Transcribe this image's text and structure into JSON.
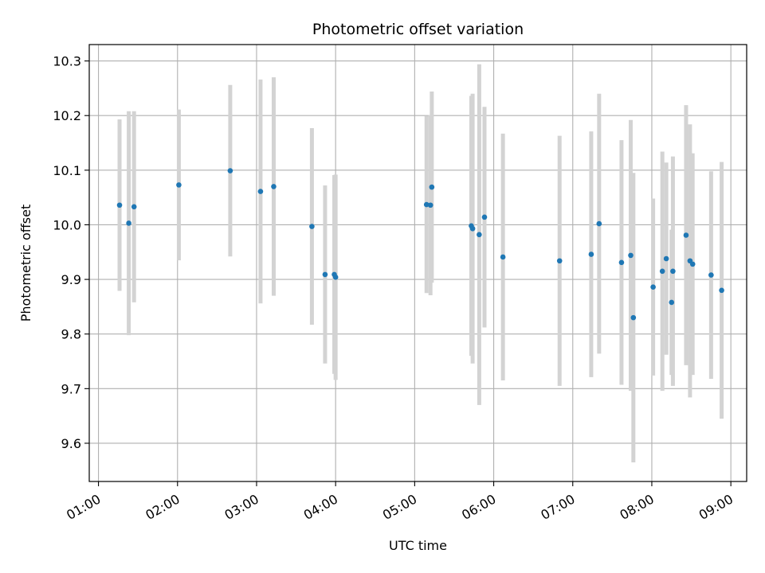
{
  "chart_data": {
    "type": "scatter",
    "title": "Photometric offset variation",
    "xlabel": "UTC time",
    "ylabel": "Photometric offset",
    "x_ticks": [
      "01:00",
      "02:00",
      "03:00",
      "04:00",
      "05:00",
      "06:00",
      "07:00",
      "08:00",
      "09:00"
    ],
    "y_ticks": [
      "9.6",
      "9.7",
      "9.8",
      "9.9",
      "10.0",
      "10.1",
      "10.2",
      "10.3"
    ],
    "xlim": [
      "00:53",
      "09:12"
    ],
    "ylim": [
      9.53,
      10.33
    ],
    "grid": true,
    "colors": {
      "marker": "#1f77b4",
      "errorbar": "#d3d3d3",
      "grid": "#b0b0b0"
    },
    "series": [
      {
        "points": [
          {
            "x": "01:16",
            "y": 10.036,
            "err": 0.157
          },
          {
            "x": "01:23",
            "y": 10.003,
            "err": 0.205
          },
          {
            "x": "01:27",
            "y": 10.033,
            "err": 0.175
          },
          {
            "x": "02:01",
            "y": 10.073,
            "err": 0.138
          },
          {
            "x": "02:40",
            "y": 10.099,
            "err": 0.157
          },
          {
            "x": "03:03",
            "y": 10.061,
            "err": 0.205
          },
          {
            "x": "03:13",
            "y": 10.07,
            "err": 0.2
          },
          {
            "x": "03:42",
            "y": 9.997,
            "err": 0.18
          },
          {
            "x": "03:52",
            "y": 9.909,
            "err": 0.163
          },
          {
            "x": "03:59",
            "y": 9.909,
            "err": 0.182
          },
          {
            "x": "04:00",
            "y": 9.904,
            "err": 0.188
          },
          {
            "x": "05:09",
            "y": 10.037,
            "err": 0.162
          },
          {
            "x": "05:12",
            "y": 10.036,
            "err": 0.165
          },
          {
            "x": "05:13",
            "y": 10.069,
            "err": 0.175
          },
          {
            "x": "05:43",
            "y": 9.998,
            "err": 0.238
          },
          {
            "x": "05:44",
            "y": 9.993,
            "err": 0.247
          },
          {
            "x": "05:49",
            "y": 9.982,
            "err": 0.312
          },
          {
            "x": "05:53",
            "y": 10.014,
            "err": 0.202
          },
          {
            "x": "06:07",
            "y": 9.941,
            "err": 0.226
          },
          {
            "x": "06:50",
            "y": 9.934,
            "err": 0.229
          },
          {
            "x": "07:14",
            "y": 9.946,
            "err": 0.225
          },
          {
            "x": "07:20",
            "y": 10.002,
            "err": 0.238
          },
          {
            "x": "07:37",
            "y": 9.931,
            "err": 0.224
          },
          {
            "x": "07:44",
            "y": 9.944,
            "err": 0.248
          },
          {
            "x": "07:46",
            "y": 9.83,
            "err": 0.265
          },
          {
            "x": "08:01",
            "y": 9.886,
            "err": 0.162
          },
          {
            "x": "08:08",
            "y": 9.915,
            "err": 0.219
          },
          {
            "x": "08:11",
            "y": 9.938,
            "err": 0.176
          },
          {
            "x": "08:15",
            "y": 9.858,
            "err": 0.133
          },
          {
            "x": "08:16",
            "y": 9.915,
            "err": 0.21
          },
          {
            "x": "08:26",
            "y": 9.981,
            "err": 0.238
          },
          {
            "x": "08:29",
            "y": 9.934,
            "err": 0.25
          },
          {
            "x": "08:31",
            "y": 9.928,
            "err": 0.203
          },
          {
            "x": "08:45",
            "y": 9.908,
            "err": 0.19
          },
          {
            "x": "08:53",
            "y": 9.88,
            "err": 0.235
          }
        ]
      }
    ]
  }
}
